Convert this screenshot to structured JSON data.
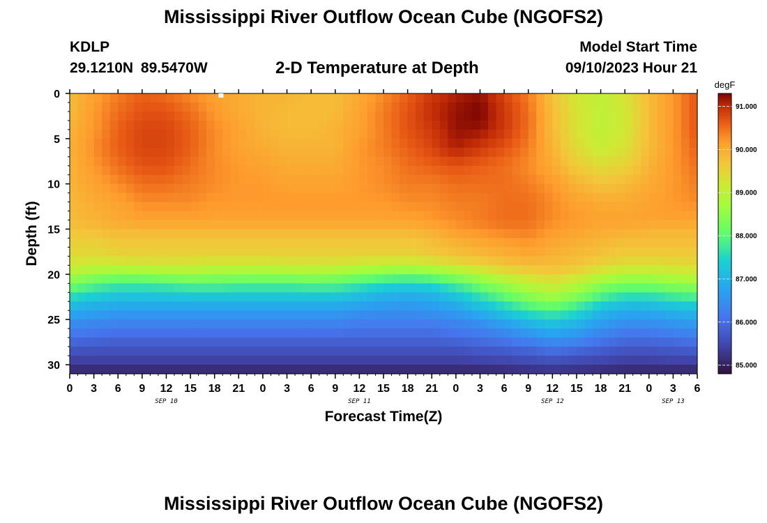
{
  "header": {
    "title": "Mississippi River Outflow Ocean Cube (NGOFS2)",
    "station": "KDLP",
    "coords": "29.1210N  89.5470W",
    "subtitle": "2-D Temperature at Depth",
    "start_label": "Model Start Time",
    "start_time": "09/10/2023 Hour 21"
  },
  "footer": {
    "title": "Mississippi River Outflow Ocean Cube (NGOFS2)"
  },
  "chart_data": {
    "type": "heatmap",
    "title": "2-D Temperature at Depth",
    "xlabel": "Forecast Time(Z)",
    "ylabel": "Depth (ft)",
    "x_unit": "hours from SEP 10 00Z",
    "xlim": [
      0,
      78
    ],
    "ylim": [
      31,
      0
    ],
    "x_tick_values": [
      0,
      3,
      6,
      9,
      12,
      15,
      18,
      21,
      24,
      27,
      30,
      33,
      36,
      39,
      42,
      45,
      48,
      51,
      54,
      57,
      60,
      63,
      66,
      69,
      72,
      75,
      78
    ],
    "x_tick_labels": [
      "0",
      "3",
      "6",
      "9",
      "12",
      "15",
      "18",
      "21",
      "0",
      "3",
      "6",
      "9",
      "12",
      "15",
      "18",
      "21",
      "0",
      "3",
      "6",
      "9",
      "12",
      "15",
      "18",
      "21",
      "0",
      "3",
      "6"
    ],
    "day_labels": [
      {
        "label": "SEP 10",
        "hour": 12
      },
      {
        "label": "SEP 11",
        "hour": 36
      },
      {
        "label": "SEP 12",
        "hour": 60
      },
      {
        "label": "SEP 13",
        "hour": 75
      }
    ],
    "y_ticks": [
      0,
      5,
      10,
      15,
      20,
      25,
      30
    ],
    "colorbar": {
      "unit": "degF",
      "min": 84.8,
      "max": 91.3,
      "ticks": [
        85.0,
        86.0,
        87.0,
        88.0,
        89.0,
        90.0,
        91.0
      ],
      "tick_labels": [
        "85.000",
        "86.000",
        "87.000",
        "88.000",
        "89.000",
        "90.000",
        "91.000"
      ]
    },
    "grid": false,
    "depths_ft": [
      0,
      2,
      4,
      6,
      8,
      10,
      12,
      14,
      15,
      16,
      18,
      19,
      20,
      21,
      22,
      23,
      24,
      25,
      26,
      27,
      28,
      29,
      30,
      31
    ],
    "hours": [
      0,
      3,
      6,
      9,
      12,
      15,
      18,
      21,
      24,
      27,
      30,
      33,
      36,
      39,
      42,
      45,
      48,
      51,
      54,
      57,
      60,
      63,
      66,
      69,
      72,
      75,
      78
    ],
    "temperature_degF": [
      [
        89.8,
        90.1,
        90.4,
        90.6,
        90.5,
        90.3,
        90.1,
        90.0,
        89.9,
        89.9,
        89.8,
        89.8,
        90.0,
        90.3,
        90.6,
        90.9,
        91.1,
        91.2,
        90.8,
        90.4,
        89.7,
        89.2,
        89.0,
        89.3,
        89.8,
        90.2,
        90.7
      ],
      [
        89.8,
        90.2,
        90.5,
        90.7,
        90.7,
        90.5,
        90.2,
        90.0,
        89.9,
        89.8,
        89.8,
        89.8,
        90.1,
        90.4,
        90.7,
        91.0,
        91.2,
        91.3,
        90.9,
        90.5,
        89.8,
        89.3,
        89.0,
        89.2,
        89.8,
        90.2,
        90.7
      ],
      [
        89.9,
        90.2,
        90.6,
        90.8,
        90.8,
        90.6,
        90.3,
        90.1,
        89.9,
        89.8,
        89.8,
        89.9,
        90.1,
        90.4,
        90.7,
        90.9,
        91.2,
        91.2,
        90.9,
        90.5,
        89.8,
        89.3,
        89.0,
        89.2,
        89.8,
        90.2,
        90.7
      ],
      [
        89.9,
        90.3,
        90.6,
        90.8,
        90.8,
        90.6,
        90.3,
        90.1,
        90.0,
        89.9,
        89.9,
        89.9,
        90.2,
        90.4,
        90.6,
        90.8,
        91.1,
        90.9,
        90.7,
        90.4,
        89.9,
        89.4,
        89.1,
        89.3,
        89.8,
        90.2,
        90.6
      ],
      [
        89.9,
        90.2,
        90.5,
        90.7,
        90.7,
        90.5,
        90.3,
        90.2,
        90.1,
        90.0,
        90.0,
        90.0,
        90.2,
        90.3,
        90.5,
        90.6,
        90.7,
        90.6,
        90.5,
        90.3,
        90.0,
        89.6,
        89.4,
        89.5,
        89.9,
        90.2,
        90.5
      ],
      [
        89.9,
        90.1,
        90.3,
        90.5,
        90.5,
        90.4,
        90.3,
        90.2,
        90.2,
        90.1,
        90.1,
        90.1,
        90.2,
        90.3,
        90.4,
        90.4,
        90.5,
        90.5,
        90.5,
        90.4,
        90.2,
        89.9,
        89.7,
        89.8,
        90.0,
        90.2,
        90.4
      ],
      [
        89.8,
        90.0,
        90.1,
        90.3,
        90.3,
        90.3,
        90.2,
        90.2,
        90.2,
        90.2,
        90.2,
        90.2,
        90.2,
        90.2,
        90.3,
        90.3,
        90.4,
        90.4,
        90.5,
        90.5,
        90.3,
        90.1,
        90.0,
        90.0,
        90.1,
        90.2,
        90.3
      ],
      [
        89.8,
        89.9,
        90.0,
        90.1,
        90.1,
        90.1,
        90.1,
        90.1,
        90.1,
        90.1,
        90.1,
        90.1,
        90.1,
        90.1,
        90.1,
        90.2,
        90.3,
        90.4,
        90.5,
        90.5,
        90.3,
        90.2,
        90.1,
        90.1,
        90.1,
        90.1,
        90.1
      ],
      [
        89.7,
        89.8,
        89.9,
        89.9,
        89.9,
        89.9,
        89.9,
        89.9,
        89.9,
        89.9,
        89.9,
        89.9,
        89.9,
        89.9,
        89.9,
        90.0,
        90.2,
        90.3,
        90.4,
        90.4,
        90.2,
        90.1,
        90.0,
        90.0,
        89.9,
        89.9,
        89.9
      ],
      [
        89.6,
        89.6,
        89.7,
        89.7,
        89.7,
        89.7,
        89.7,
        89.7,
        89.7,
        89.7,
        89.7,
        89.7,
        89.7,
        89.7,
        89.7,
        89.8,
        90.0,
        90.1,
        90.2,
        90.3,
        90.1,
        90.0,
        89.9,
        89.8,
        89.8,
        89.8,
        89.8
      ],
      [
        89.4,
        89.4,
        89.5,
        89.5,
        89.5,
        89.5,
        89.5,
        89.5,
        89.5,
        89.5,
        89.5,
        89.5,
        89.5,
        89.5,
        89.5,
        89.6,
        89.7,
        89.8,
        89.9,
        90.0,
        89.9,
        89.8,
        89.7,
        89.6,
        89.6,
        89.6,
        89.6
      ],
      [
        89.2,
        89.1,
        89.1,
        89.2,
        89.2,
        89.2,
        89.1,
        89.1,
        89.1,
        89.2,
        89.2,
        89.2,
        89.1,
        89.0,
        89.0,
        89.1,
        89.3,
        89.5,
        89.7,
        89.8,
        89.8,
        89.7,
        89.5,
        89.3,
        89.3,
        89.4,
        89.4
      ],
      [
        88.8,
        88.6,
        88.5,
        88.5,
        88.6,
        88.7,
        88.6,
        88.6,
        88.6,
        88.6,
        88.7,
        88.6,
        88.4,
        88.3,
        88.2,
        88.3,
        88.6,
        88.9,
        89.2,
        89.4,
        89.6,
        89.4,
        89.1,
        88.9,
        88.9,
        89.0,
        89.1
      ],
      [
        88.3,
        88.0,
        87.8,
        87.8,
        87.9,
        88.0,
        88.0,
        87.9,
        87.9,
        87.9,
        88.0,
        88.0,
        87.8,
        87.6,
        87.5,
        87.6,
        87.9,
        88.3,
        88.7,
        89.0,
        89.2,
        88.9,
        88.5,
        88.3,
        88.3,
        88.5,
        88.6
      ],
      [
        87.8,
        87.6,
        87.4,
        87.4,
        87.4,
        87.5,
        87.5,
        87.5,
        87.5,
        87.5,
        87.5,
        87.5,
        87.3,
        87.1,
        87.0,
        87.1,
        87.4,
        87.8,
        88.2,
        88.6,
        88.9,
        88.6,
        88.1,
        87.8,
        87.8,
        88.0,
        88.1
      ],
      [
        87.3,
        87.1,
        87.0,
        87.0,
        87.0,
        87.0,
        87.0,
        87.0,
        87.0,
        87.0,
        87.0,
        87.0,
        86.9,
        86.8,
        86.7,
        86.8,
        87.0,
        87.4,
        87.8,
        88.2,
        88.4,
        88.1,
        87.6,
        87.3,
        87.3,
        87.5,
        87.6
      ],
      [
        86.9,
        86.8,
        86.7,
        86.7,
        86.7,
        86.7,
        86.7,
        86.7,
        86.7,
        86.7,
        86.7,
        86.7,
        86.6,
        86.5,
        86.5,
        86.6,
        86.7,
        87.0,
        87.3,
        87.7,
        87.9,
        87.6,
        87.1,
        86.9,
        86.9,
        87.0,
        87.1
      ],
      [
        86.6,
        86.5,
        86.4,
        86.4,
        86.4,
        86.4,
        86.4,
        86.4,
        86.4,
        86.4,
        86.4,
        86.4,
        86.3,
        86.3,
        86.3,
        86.3,
        86.4,
        86.6,
        86.9,
        87.2,
        87.4,
        87.2,
        86.8,
        86.6,
        86.6,
        86.7,
        86.8
      ],
      [
        86.3,
        86.2,
        86.2,
        86.2,
        86.2,
        86.2,
        86.2,
        86.2,
        86.2,
        86.2,
        86.2,
        86.2,
        86.1,
        86.1,
        86.1,
        86.1,
        86.2,
        86.3,
        86.5,
        86.8,
        87.0,
        86.8,
        86.5,
        86.3,
        86.3,
        86.4,
        86.5
      ],
      [
        86.0,
        86.0,
        85.9,
        85.9,
        85.9,
        85.9,
        85.9,
        85.9,
        85.9,
        85.9,
        85.9,
        85.9,
        85.9,
        85.9,
        85.9,
        85.9,
        86.0,
        86.1,
        86.2,
        86.4,
        86.6,
        86.5,
        86.2,
        86.0,
        86.0,
        86.1,
        86.2
      ],
      [
        85.8,
        85.7,
        85.7,
        85.7,
        85.7,
        85.7,
        85.7,
        85.7,
        85.7,
        85.7,
        85.7,
        85.7,
        85.7,
        85.7,
        85.7,
        85.7,
        85.7,
        85.8,
        85.9,
        86.0,
        86.2,
        86.1,
        85.9,
        85.8,
        85.8,
        85.8,
        85.9
      ],
      [
        85.5,
        85.5,
        85.5,
        85.5,
        85.5,
        85.5,
        85.5,
        85.5,
        85.5,
        85.5,
        85.5,
        85.5,
        85.5,
        85.5,
        85.5,
        85.5,
        85.5,
        85.6,
        85.6,
        85.7,
        85.8,
        85.7,
        85.6,
        85.5,
        85.5,
        85.6,
        85.6
      ],
      [
        85.3,
        85.3,
        85.3,
        85.3,
        85.3,
        85.3,
        85.3,
        85.3,
        85.3,
        85.3,
        85.3,
        85.3,
        85.3,
        85.3,
        85.3,
        85.3,
        85.3,
        85.3,
        85.4,
        85.4,
        85.5,
        85.4,
        85.4,
        85.3,
        85.3,
        85.3,
        85.3
      ],
      [
        85.0,
        85.0,
        85.0,
        85.0,
        85.0,
        85.0,
        85.0,
        85.0,
        85.0,
        85.0,
        85.0,
        85.0,
        85.0,
        85.0,
        85.0,
        85.0,
        85.0,
        85.0,
        85.0,
        85.1,
        85.1,
        85.1,
        85.0,
        85.0,
        85.0,
        85.0,
        85.0
      ]
    ]
  }
}
